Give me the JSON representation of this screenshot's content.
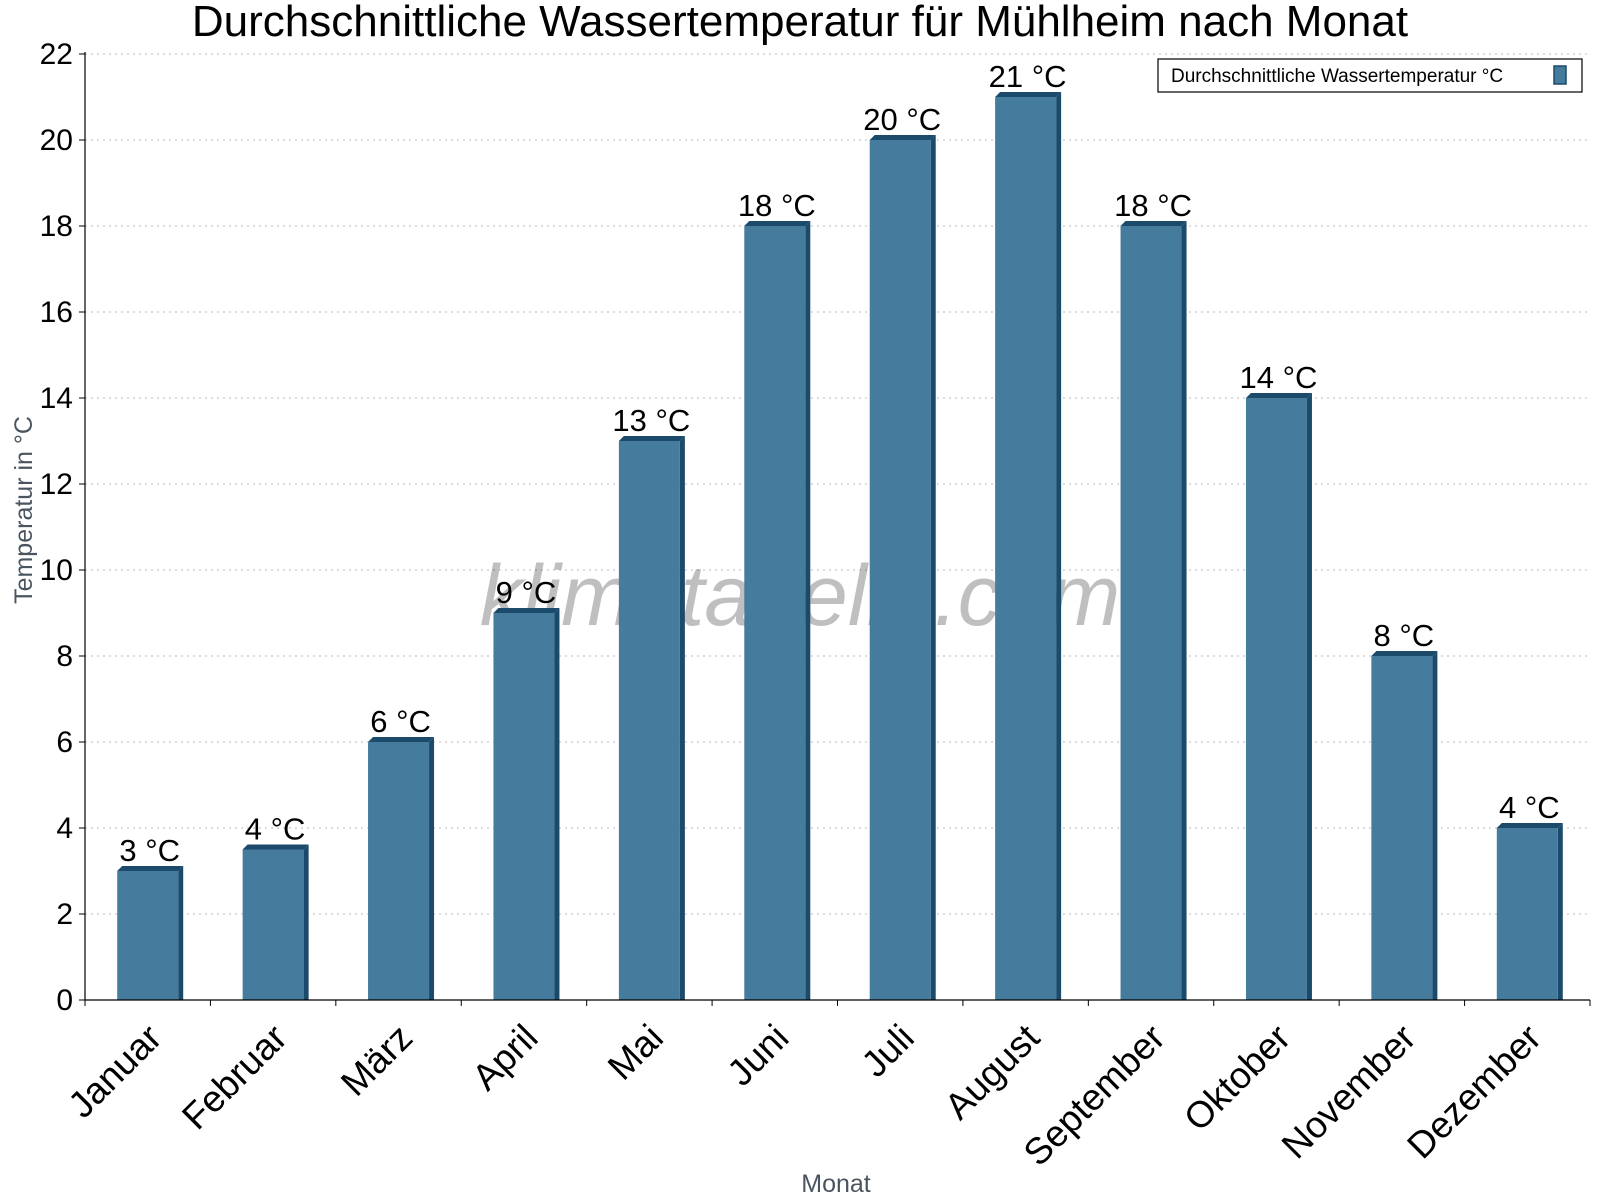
{
  "chart_data": {
    "type": "bar",
    "title": "Durchschnittliche Wassertemperatur für Mühlheim nach Monat",
    "xlabel": "Monat",
    "ylabel": "Temperatur in °C",
    "categories": [
      "Januar",
      "Februar",
      "März",
      "April",
      "Mai",
      "Juni",
      "Juli",
      "August",
      "September",
      "Oktober",
      "November",
      "Dezember"
    ],
    "series": [
      {
        "name": "Durchschnittliche Wassertemperatur °C",
        "values": [
          3,
          3.5,
          6,
          9,
          13,
          18,
          20,
          21,
          18,
          14,
          8,
          4
        ],
        "labels": [
          "3 °C",
          "4 °C",
          "6 °C",
          "9 °C",
          "13 °C",
          "18 °C",
          "20 °C",
          "21 °C",
          "18 °C",
          "14 °C",
          "8 °C",
          "4 °C"
        ],
        "color": "#457b9d",
        "edge_color": "#1b4a6b"
      }
    ],
    "ylim": [
      0,
      22
    ],
    "yticks": [
      0,
      2,
      4,
      6,
      8,
      10,
      12,
      14,
      16,
      18,
      20,
      22
    ],
    "grid": true,
    "legend_position": "top-right",
    "watermark": "klimatabelle.com"
  }
}
